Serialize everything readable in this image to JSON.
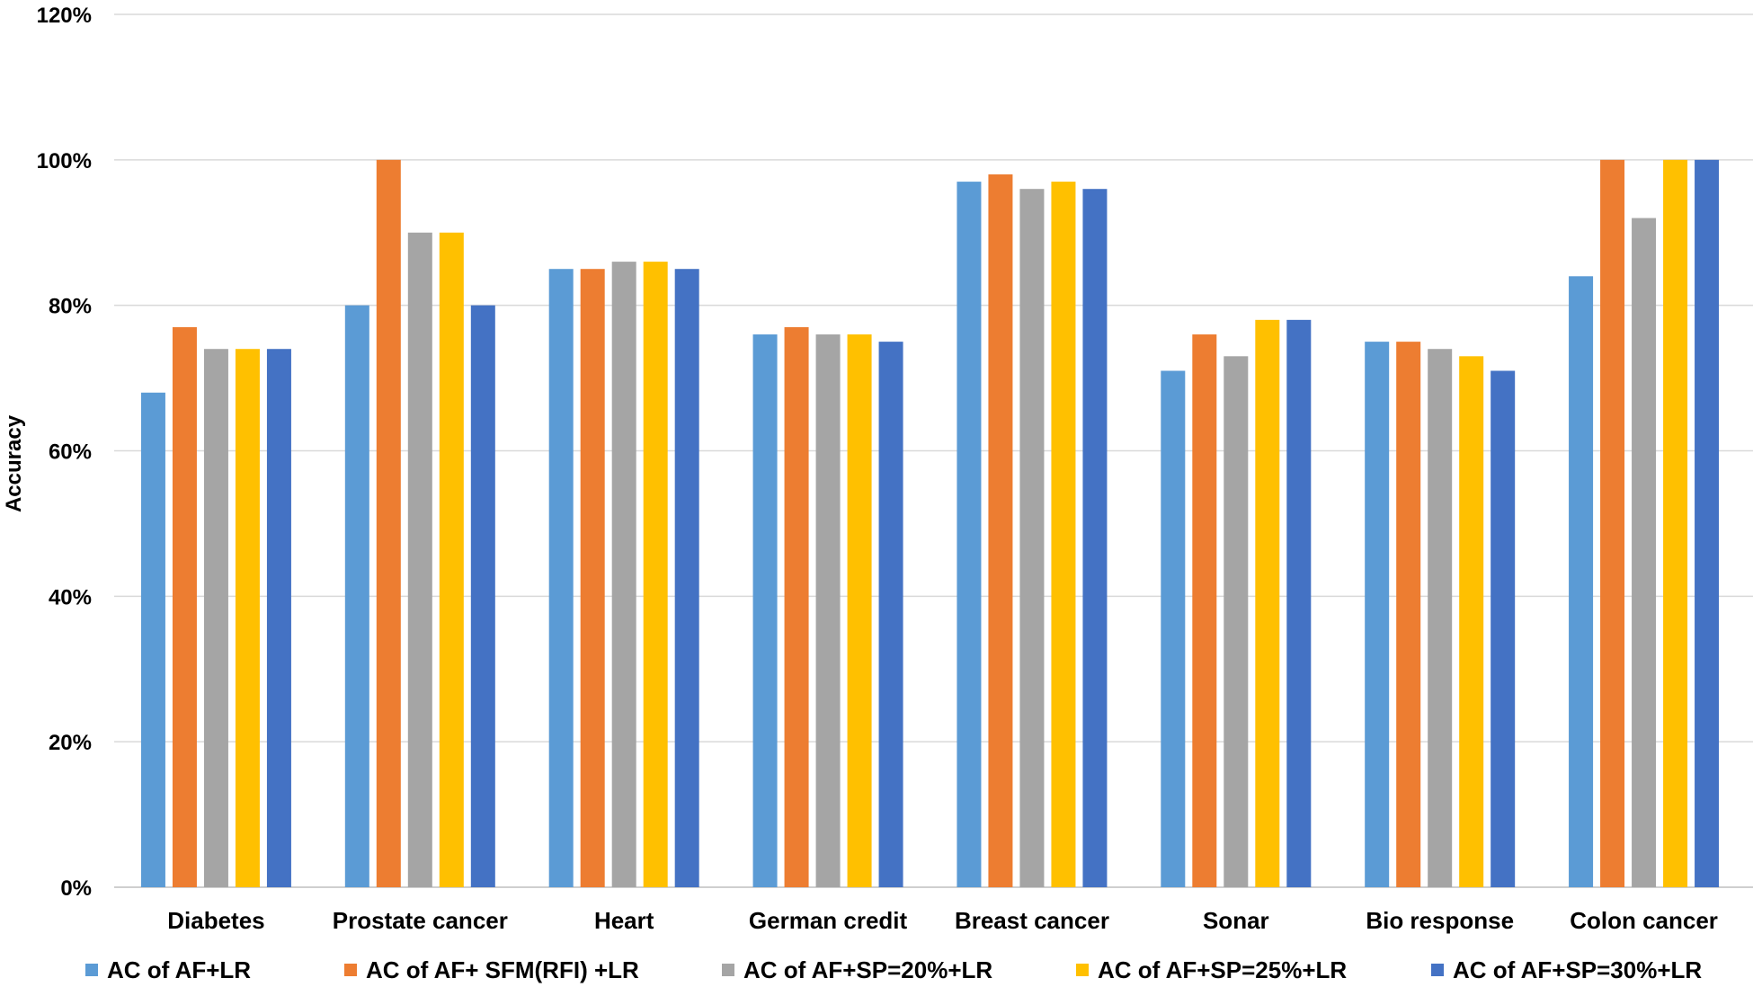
{
  "chart_data": {
    "type": "bar",
    "title": "",
    "xlabel": "",
    "ylabel": "Accuracy",
    "ylim": [
      0,
      120
    ],
    "y_ticks": [
      "0%",
      "20%",
      "40%",
      "60%",
      "80%",
      "100%",
      "120%"
    ],
    "grid": true,
    "legend_position": "bottom",
    "categories": [
      "Diabetes",
      "Prostate cancer",
      "Heart",
      "German credit",
      "Breast cancer",
      "Sonar",
      "Bio response",
      "Colon cancer"
    ],
    "series": [
      {
        "name": "AC of AF+LR",
        "color": "#5b9bd5",
        "values": [
          68,
          80,
          85,
          76,
          97,
          71,
          75,
          84
        ]
      },
      {
        "name": "AC of AF+ SFM(RFI) +LR",
        "color": "#ed7d31",
        "values": [
          77,
          100,
          85,
          77,
          98,
          76,
          75,
          100
        ]
      },
      {
        "name": "AC of AF+SP=20%+LR",
        "color": "#a5a5a5",
        "values": [
          74,
          90,
          86,
          76,
          96,
          73,
          74,
          92
        ]
      },
      {
        "name": "AC of AF+SP=25%+LR",
        "color": "#ffc000",
        "values": [
          74,
          90,
          86,
          76,
          97,
          78,
          73,
          100
        ]
      },
      {
        "name": "AC of AF+SP=30%+LR",
        "color": "#4472c4",
        "values": [
          74,
          80,
          85,
          75,
          96,
          78,
          71,
          100
        ]
      }
    ]
  }
}
